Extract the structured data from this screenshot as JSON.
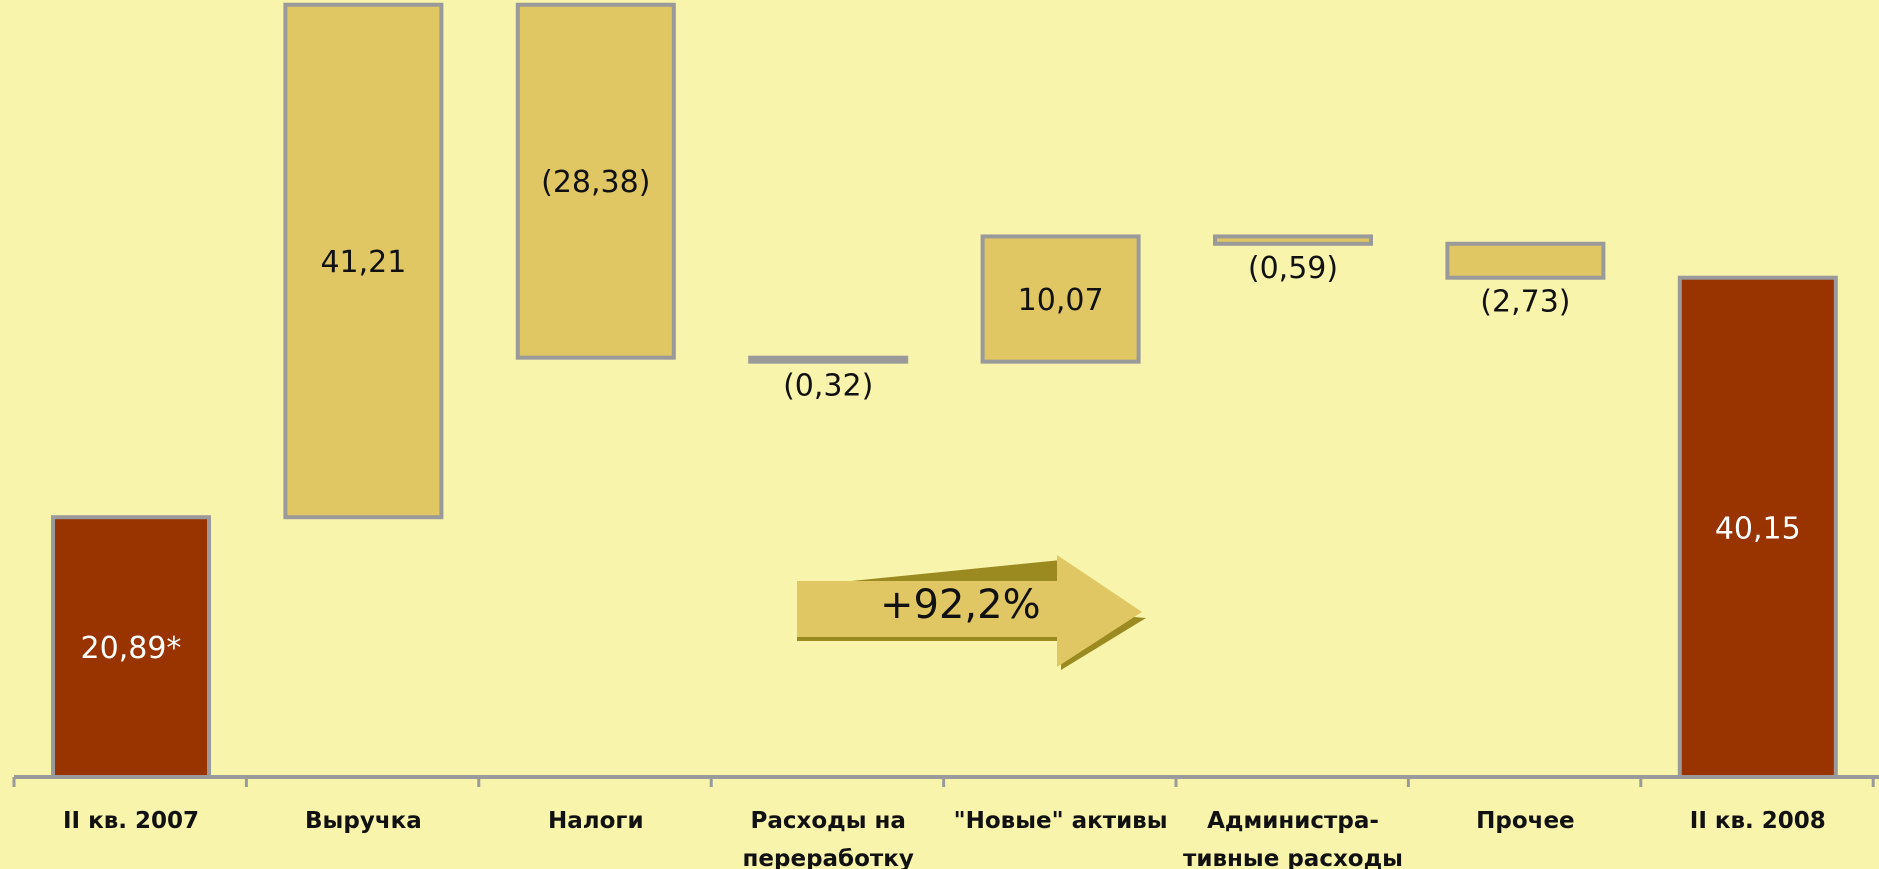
{
  "chart_data": {
    "type": "bar",
    "subtype": "waterfall",
    "categories": [
      [
        "II кв. 2007"
      ],
      [
        "Выручка"
      ],
      [
        "Налоги"
      ],
      [
        "Расходы на",
        "переработку"
      ],
      [
        "\"Новые\" активы"
      ],
      [
        "Администра-",
        "тивные расходы"
      ],
      [
        "Прочее"
      ],
      [
        "II кв. 2008"
      ]
    ],
    "values": [
      20.89,
      41.21,
      -28.38,
      -0.32,
      10.07,
      -0.59,
      -2.73,
      40.15
    ],
    "value_labels": [
      "20,89*",
      "41,21",
      "(28,38)",
      "(0,32)",
      "10,07",
      "(0,59)",
      "(2,73)",
      "40,15"
    ],
    "bar_roles": [
      "total",
      "delta",
      "delta",
      "delta",
      "delta",
      "delta",
      "delta",
      "total"
    ],
    "ylim": [
      0,
      62
    ],
    "grid": false,
    "colors": {
      "total": "#993300",
      "delta": "#e0c763",
      "border": "#9a9a9a",
      "axis": "#9a9a9a",
      "background": "#f8f4ab"
    },
    "annotation": {
      "text": "+92,2%",
      "shape": "right-arrow",
      "color": "#e0c763",
      "shadow": "#9a8a20"
    }
  }
}
